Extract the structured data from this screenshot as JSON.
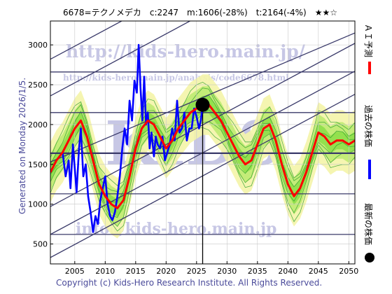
{
  "header": {
    "title": "6678=テクノメデカ　c:2247　m:1606(-28%)　t:2164(-4%)　★★☆"
  },
  "side_note": "Generated on Monday 2026/1/5.",
  "footer": "Copyright (c) Kids-Hero Research Institute. All Rights Reserved.",
  "watermarks": {
    "url": "http://kids-hero.main.jp/",
    "analysis": "http://kids-hero.main.jp/analysis/code6678.html",
    "email": "info@kids-hero.main.jp",
    "logo": "KIDS"
  },
  "legend": [
    {
      "label": "ＡＩ予測",
      "color": "#ff0000",
      "icon": "red-line-icon"
    },
    {
      "label": "過去の株価",
      "color": "#0000ff",
      "icon": "blue-line-icon"
    },
    {
      "label": "最新の株価",
      "color": "#000000",
      "icon": "black-dot-icon"
    }
  ],
  "chart_data": {
    "type": "line",
    "xlim": [
      2001,
      2051
    ],
    "ylim": [
      250,
      3300
    ],
    "x_ticks": [
      2005,
      2010,
      2015,
      2020,
      2025,
      2030,
      2035,
      2040,
      2045,
      2050
    ],
    "y_ticks": [
      500,
      1000,
      1500,
      2000,
      2500,
      3000
    ],
    "grid": true,
    "latest": {
      "x": 2026.0,
      "y": 2247
    },
    "vline_x": 2026.0,
    "hlines": [
      620,
      1130,
      1640,
      2150,
      2660
    ],
    "channels": [
      {
        "x0": 2001,
        "y0": 330,
        "x1": 2051,
        "y1": 2380
      },
      {
        "x0": 2001,
        "y0": 620,
        "x1": 2051,
        "y1": 2670
      },
      {
        "x0": 2001,
        "y0": 970,
        "x1": 2051,
        "y1": 3020
      },
      {
        "x0": 2001,
        "y0": 1530,
        "x1": 2051,
        "y1": 3150
      },
      {
        "x0": 2001,
        "y0": 2360,
        "x1": 2051,
        "y1": 4410
      },
      {
        "x0": 2001,
        "y0": 2820,
        "x1": 2051,
        "y1": 4870
      }
    ],
    "series": [
      {
        "name": "過去の株価",
        "color": "#0000ff",
        "x": [
          2003.0,
          2003.5,
          2004.0,
          2004.3,
          2004.7,
          2005.0,
          2005.3,
          2005.7,
          2006.0,
          2006.4,
          2006.8,
          2007.2,
          2007.6,
          2008.0,
          2008.4,
          2008.8,
          2009.2,
          2009.6,
          2010.0,
          2010.4,
          2010.8,
          2011.2,
          2011.6,
          2012.0,
          2012.4,
          2012.8,
          2013.2,
          2013.6,
          2014.0,
          2014.4,
          2014.8,
          2015.2,
          2015.5,
          2015.8,
          2016.1,
          2016.4,
          2016.7,
          2017.0,
          2017.3,
          2017.6,
          2018.0,
          2018.3,
          2018.6,
          2019.0,
          2019.4,
          2019.8,
          2020.2,
          2020.6,
          2021.0,
          2021.4,
          2021.8,
          2022.2,
          2022.6,
          2023.0,
          2023.4,
          2023.8,
          2024.2,
          2024.6,
          2025.0,
          2025.4,
          2025.7,
          2026.0
        ],
        "y": [
          1650,
          1350,
          1550,
          1200,
          1750,
          1450,
          1150,
          1700,
          1950,
          1350,
          1500,
          1100,
          900,
          650,
          850,
          750,
          1050,
          1200,
          1350,
          1000,
          850,
          800,
          900,
          1100,
          1350,
          1700,
          1950,
          1750,
          2300,
          2050,
          2550,
          2400,
          3000,
          2450,
          2050,
          2600,
          2000,
          2150,
          1700,
          1900,
          1600,
          1850,
          1750,
          1700,
          1850,
          1550,
          1650,
          1750,
          1950,
          1800,
          2300,
          1900,
          1950,
          2150,
          1800,
          1950,
          1950,
          2200,
          2100,
          1950,
          2050,
          2247
        ]
      },
      {
        "name": "ＡＩ予測",
        "color": "#ff0000",
        "x": [
          2001,
          2002,
          2003,
          2004,
          2005,
          2006,
          2007,
          2008,
          2009,
          2010,
          2011,
          2012,
          2013,
          2014,
          2015,
          2016,
          2017,
          2018,
          2019,
          2020,
          2021,
          2022,
          2023,
          2024,
          2025,
          2026,
          2027,
          2028,
          2029,
          2030,
          2031,
          2032,
          2033,
          2034,
          2035,
          2036,
          2037,
          2038,
          2039,
          2040,
          2041,
          2042,
          2043,
          2044,
          2045,
          2046,
          2047,
          2048,
          2049,
          2050,
          2051
        ],
        "y": [
          1400,
          1550,
          1650,
          1800,
          1950,
          2050,
          1850,
          1550,
          1250,
          1100,
          1000,
          950,
          1050,
          1350,
          1700,
          1950,
          2050,
          2000,
          1850,
          1700,
          1800,
          1950,
          2050,
          2150,
          2200,
          2250,
          2250,
          2150,
          2050,
          1900,
          1750,
          1600,
          1500,
          1550,
          1750,
          1950,
          2000,
          1800,
          1500,
          1250,
          1100,
          1200,
          1400,
          1650,
          1900,
          1850,
          1750,
          1800,
          1800,
          1750,
          1800
        ]
      }
    ]
  }
}
